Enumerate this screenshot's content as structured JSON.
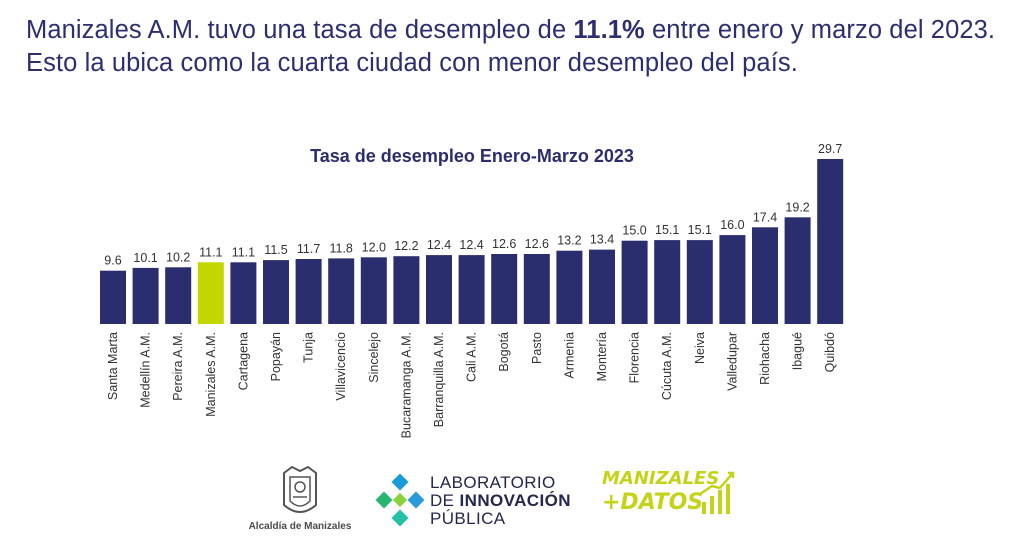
{
  "headline": {
    "part1": "Manizales A.M. tuvo una tasa de desempleo de ",
    "highlight": "11.1%",
    "part2": " entre enero y marzo del 2023. Esto la ubica como la cuarta ciudad con menor desempleo del país."
  },
  "chart_data": {
    "type": "bar",
    "title": "Tasa de desempleo Enero-Marzo 2023",
    "categories": [
      "Santa Marta",
      "Medellín A.M.",
      "Pereira A.M.",
      "Manizales A.M.",
      "Cartagena",
      "Popayán",
      "Tunja",
      "Villavicencio",
      "Sincelejo",
      "Bucaramanga A.M.",
      "Barranquilla A.M.",
      "Cali A.M.",
      "Bogotá",
      "Pasto",
      "Armenia",
      "Montería",
      "Florencia",
      "Cúcuta A.M.",
      "Neiva",
      "Valledupar",
      "Riohacha",
      "Ibagué",
      "Quibdó"
    ],
    "values": [
      9.6,
      10.1,
      10.2,
      11.1,
      11.1,
      11.5,
      11.7,
      11.8,
      12.0,
      12.2,
      12.4,
      12.4,
      12.6,
      12.6,
      13.2,
      13.4,
      15.0,
      15.1,
      15.1,
      16.0,
      17.4,
      19.2,
      29.7
    ],
    "highlight_category": "Manizales A.M.",
    "bar_color": "#2b2e6e",
    "highlight_color": "#c4d600",
    "xlabel": "",
    "ylabel": "",
    "ylim": [
      0,
      29.7
    ],
    "grid": false,
    "legend": "none"
  },
  "footer": {
    "alcaldia_caption": "Alcaldía de Manizales",
    "lab_line1": "LABORATORIO",
    "lab_line2a": "DE ",
    "lab_line2b": "INNOVACIÓN",
    "lab_line3": "PÚBLICA",
    "datos_line1": "MANIZALES",
    "datos_line2": "+DATOS"
  }
}
